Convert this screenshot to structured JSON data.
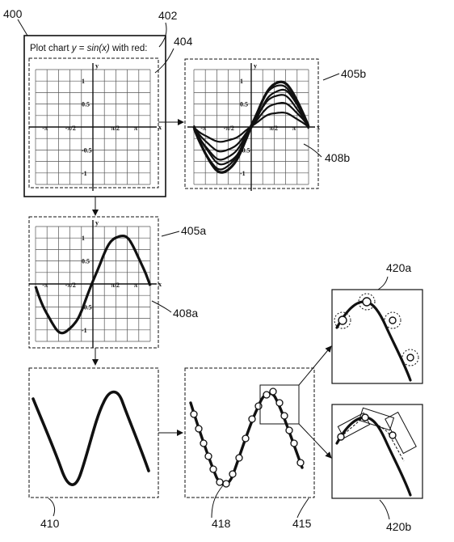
{
  "labels": {
    "fig": "400",
    "prompt_box": "402",
    "plot_panel": "404",
    "panel_a": "405a",
    "panel_b": "405b",
    "curve_a": "408a",
    "curve_b": "408b",
    "panel_410": "410",
    "panel_415": "415",
    "points": "418",
    "zoom_a": "420a",
    "zoom_b": "420b"
  },
  "prompt": {
    "prefix": "Plot chart ",
    "eq_y": "y",
    "eq_mid": " = ",
    "eq_fn": "sin(x)",
    "suffix": " with red:"
  },
  "axis": {
    "x_ticks": [
      "-π",
      "-π/2",
      "π/2",
      "π"
    ],
    "y_ticks": [
      "1",
      "0.5",
      "-0.5",
      "-1"
    ],
    "x_name": "x",
    "y_name": "y"
  },
  "colors": {
    "ink": "#111111",
    "background": "#ffffff",
    "grid": "#444444"
  }
}
